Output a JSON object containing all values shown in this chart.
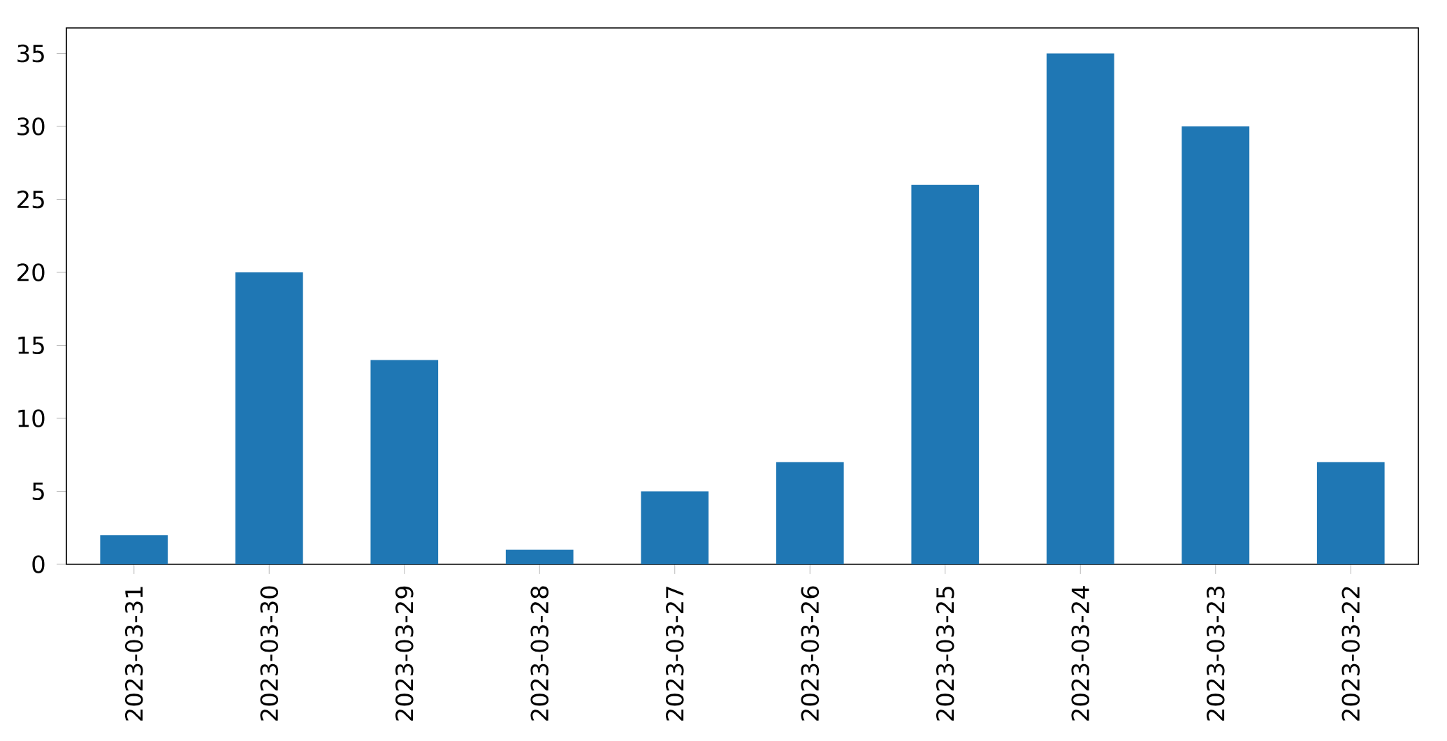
{
  "chart_data": {
    "type": "bar",
    "categories": [
      "2023-03-31",
      "2023-03-30",
      "2023-03-29",
      "2023-03-28",
      "2023-03-27",
      "2023-03-26",
      "2023-03-25",
      "2023-03-24",
      "2023-03-23",
      "2023-03-22"
    ],
    "values": [
      2,
      20,
      14,
      1,
      5,
      7,
      26,
      35,
      30,
      7
    ],
    "color": "#1f77b4",
    "ylim": [
      0,
      36.75
    ],
    "yticks": [
      0,
      5,
      10,
      15,
      20,
      25,
      30,
      35
    ]
  }
}
